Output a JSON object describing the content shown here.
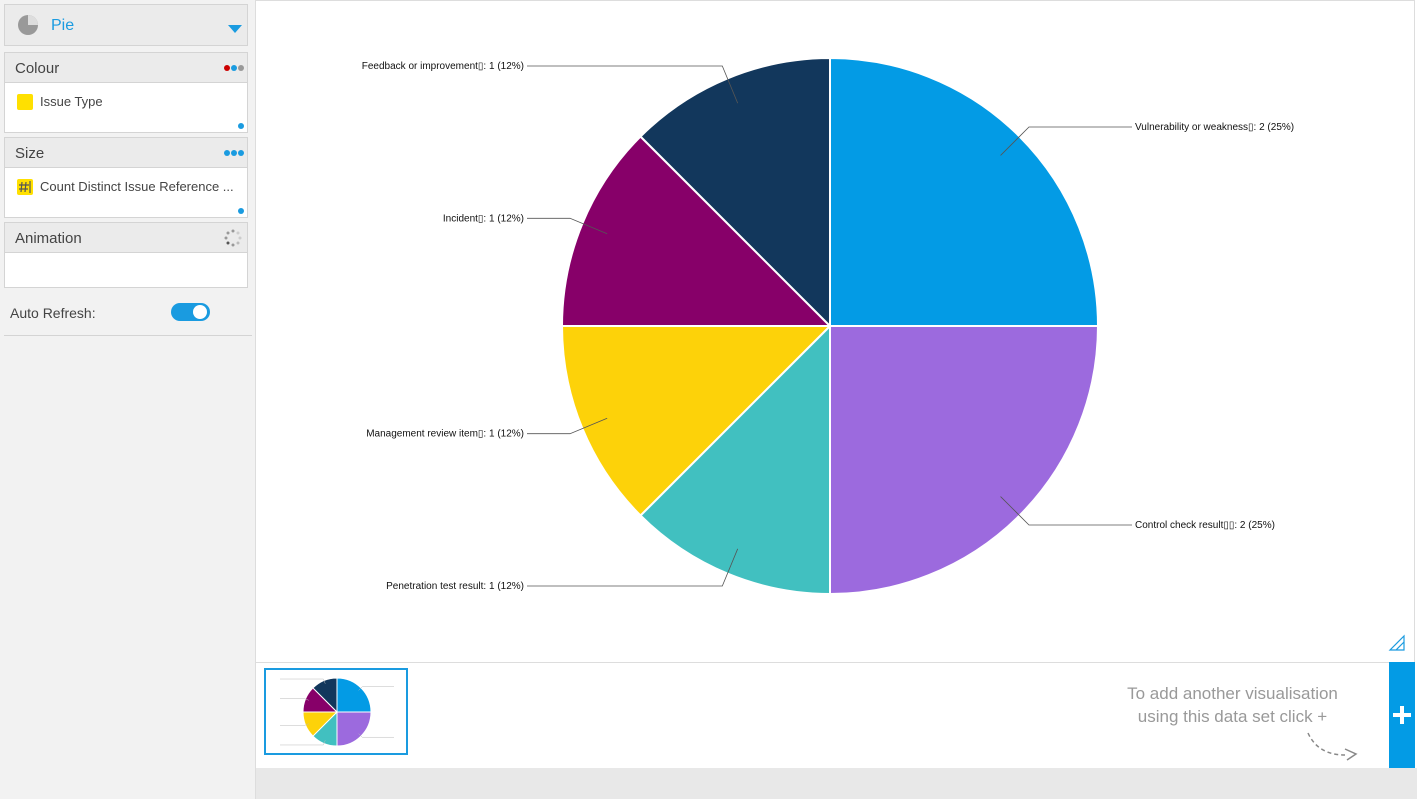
{
  "sidebar": {
    "chart_type": "Pie",
    "colour": {
      "header": "Colour",
      "field": "Issue Type"
    },
    "size": {
      "header": "Size",
      "field": "Count Distinct Issue Reference ..."
    },
    "animation": {
      "header": "Animation"
    },
    "auto_refresh": "Auto Refresh:"
  },
  "hint": [
    "To add another visualisation",
    "using this data set click +"
  ],
  "chart_data": {
    "type": "pie",
    "categories": [
      "Vulnerability or weakness▯",
      "Control check result▯▯",
      "Penetration test result",
      "Management review item▯",
      "Incident▯",
      "Feedback or improvement▯"
    ],
    "values": [
      2,
      2,
      1,
      1,
      1,
      1
    ],
    "value_labels": [
      ": 2 (25%)",
      ": 2 (25%)",
      ": 1 (12%)",
      ": 1 (12%)",
      ": 1 (12%)",
      ": 1 (12%)"
    ],
    "colors": [
      "#039be5",
      "#9c6ade",
      "#41c0c0",
      "#fdd209",
      "#870069",
      "#12375c"
    ]
  }
}
